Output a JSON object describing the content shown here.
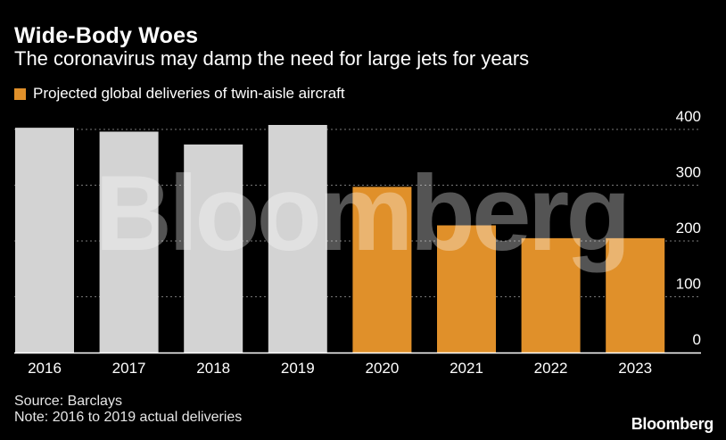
{
  "colors": {
    "actual": "#d3d3d3",
    "projected": "#e0902a",
    "grid": "#777777",
    "axis": "#ffffff",
    "text": "#ffffff",
    "watermark": "#ffffff"
  },
  "watermark": "Bloomberg",
  "brand": "Bloomberg",
  "footer": {
    "source": "Source: Barclays",
    "note": "Note: 2016 to 2019 actual deliveries"
  },
  "chart_data": {
    "type": "bar",
    "title": "Wide-Body Woes",
    "subtitle": "The coronavirus may damp the need for large jets for years",
    "legend": [
      {
        "label": "Projected global deliveries of twin-aisle aircraft",
        "color_key": "projected"
      }
    ],
    "categories": [
      "2016",
      "2017",
      "2018",
      "2019",
      "2020",
      "2021",
      "2022",
      "2023"
    ],
    "values": [
      403,
      396,
      373,
      408,
      297,
      228,
      205,
      205
    ],
    "projected": [
      false,
      false,
      false,
      false,
      true,
      true,
      true,
      true
    ],
    "ylim": [
      0,
      400
    ],
    "yticks": [
      0,
      100,
      200,
      300,
      400
    ],
    "ytick_labels": [
      "0",
      "100",
      "200",
      "300",
      "400"
    ],
    "xlabel": "",
    "ylabel": "",
    "grid": true
  }
}
